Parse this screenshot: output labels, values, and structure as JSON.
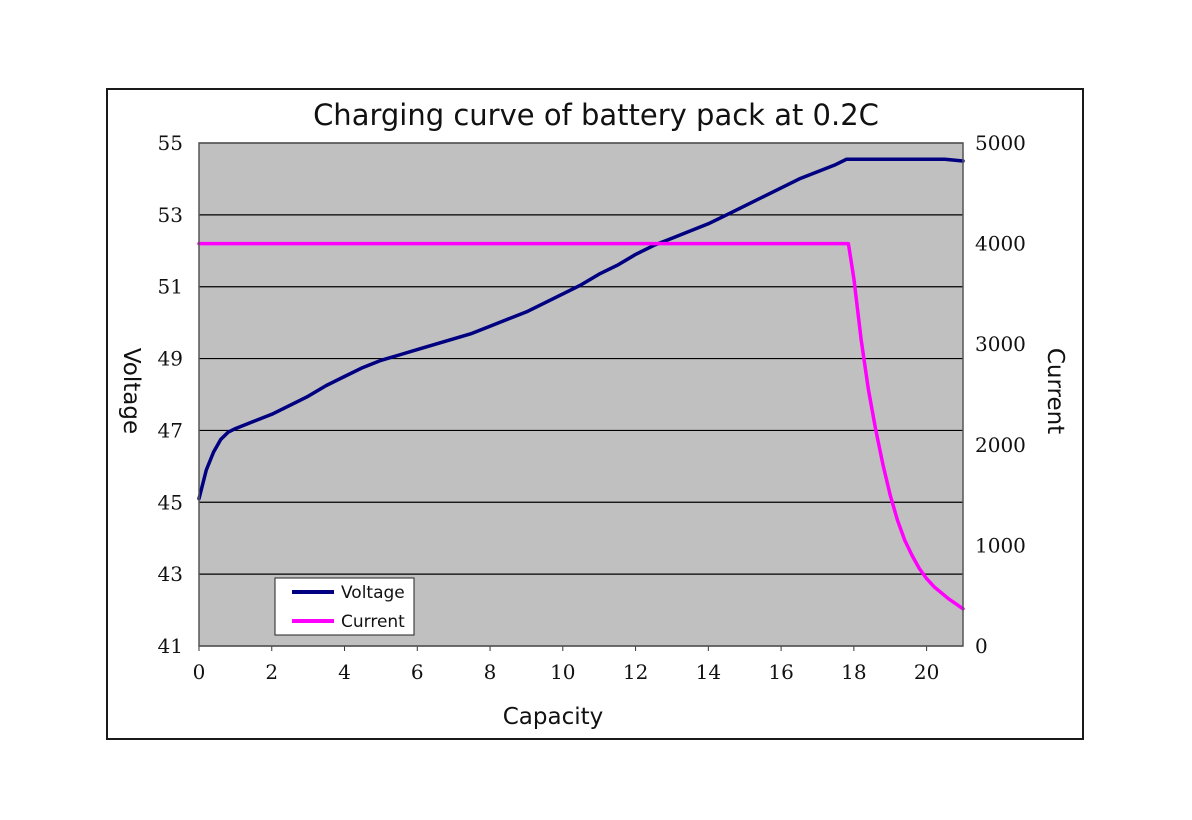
{
  "chart_data": {
    "type": "line",
    "title": "Charging curve of battery pack at 0.2C",
    "xlabel": "Capacity",
    "ylabel": "Voltage",
    "y2label": "Current",
    "xlim": [
      0,
      21
    ],
    "ylim": [
      41,
      55
    ],
    "y2lim": [
      0,
      5000
    ],
    "x_ticks": [
      "0",
      "2",
      "4",
      "6",
      "8",
      "10",
      "12",
      "14",
      "16",
      "18",
      "20"
    ],
    "y_ticks": [
      "41",
      "43",
      "45",
      "47",
      "49",
      "51",
      "53",
      "55"
    ],
    "y2_ticks": [
      "0",
      "1000",
      "2000",
      "3000",
      "4000",
      "5000"
    ],
    "grid": "horizontal",
    "plot_background": "#c0c0c0",
    "legend_position": "bottom-left",
    "series": [
      {
        "name": "Voltage",
        "axis": "left",
        "color": "#000080",
        "x": [
          0,
          0.2,
          0.4,
          0.6,
          0.8,
          1.0,
          1.5,
          2.0,
          2.5,
          3.0,
          3.5,
          4.0,
          4.5,
          5.0,
          5.5,
          6.0,
          6.5,
          7.0,
          7.5,
          8.0,
          8.5,
          9.0,
          9.5,
          10.0,
          10.5,
          11.0,
          11.5,
          12.0,
          12.5,
          13.0,
          13.5,
          14.0,
          14.5,
          15.0,
          15.5,
          16.0,
          16.5,
          17.0,
          17.5,
          17.8,
          18.5,
          19.0,
          19.5,
          20.0,
          20.5,
          21.0
        ],
        "values": [
          45.1,
          45.9,
          46.4,
          46.75,
          46.95,
          47.05,
          47.25,
          47.45,
          47.7,
          47.95,
          48.25,
          48.5,
          48.75,
          48.95,
          49.1,
          49.25,
          49.4,
          49.55,
          49.7,
          49.9,
          50.1,
          50.3,
          50.55,
          50.8,
          51.05,
          51.35,
          51.6,
          51.9,
          52.15,
          52.35,
          52.55,
          52.75,
          53.0,
          53.25,
          53.5,
          53.75,
          54.0,
          54.2,
          54.4,
          54.55,
          54.55,
          54.55,
          54.55,
          54.55,
          54.55,
          54.5
        ]
      },
      {
        "name": "Current",
        "axis": "right",
        "color": "#ff00ff",
        "x": [
          0,
          2,
          4,
          6,
          8,
          10,
          12,
          14,
          16,
          17.85,
          18.0,
          18.2,
          18.4,
          18.6,
          18.8,
          19.0,
          19.2,
          19.4,
          19.6,
          19.8,
          20.0,
          20.2,
          20.4,
          20.6,
          20.8,
          21.0
        ],
        "values": [
          4000,
          4000,
          4000,
          4000,
          4000,
          4000,
          4000,
          4000,
          4000,
          4000,
          3650,
          3050,
          2550,
          2150,
          1800,
          1500,
          1250,
          1050,
          900,
          770,
          670,
          590,
          530,
          470,
          420,
          370
        ]
      }
    ]
  }
}
